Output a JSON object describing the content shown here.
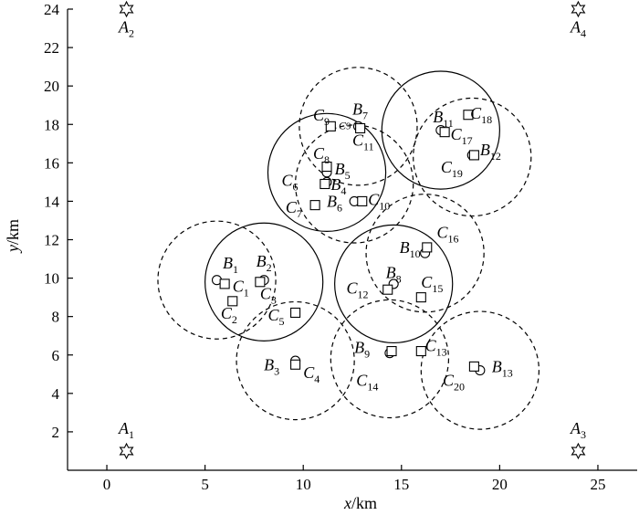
{
  "chart_data": {
    "type": "scatter",
    "title": "",
    "xlabel": {
      "var": "x",
      "unit": "/km"
    },
    "ylabel": {
      "var": "y",
      "unit": "/km"
    },
    "xlim": [
      -2,
      27
    ],
    "ylim": [
      0,
      24
    ],
    "xticks": [
      0,
      5,
      10,
      15,
      20,
      25
    ],
    "yticks": [
      2,
      4,
      6,
      8,
      10,
      12,
      14,
      16,
      18,
      20,
      22,
      24
    ],
    "grid": false,
    "legend": "none",
    "anchors": [
      {
        "label": "A",
        "sub": "1",
        "x": 1,
        "y": 1
      },
      {
        "label": "A",
        "sub": "2",
        "x": 1,
        "y": 24
      },
      {
        "label": "A",
        "sub": "3",
        "x": 24,
        "y": 1
      },
      {
        "label": "A",
        "sub": "4",
        "x": 24,
        "y": 24
      }
    ],
    "base_stations": [
      {
        "label": "B",
        "sub": "1",
        "x": 5.6,
        "y": 9.9
      },
      {
        "label": "B",
        "sub": "2",
        "x": 8.0,
        "y": 9.9
      },
      {
        "label": "B",
        "sub": "3",
        "x": 9.6,
        "y": 5.7
      },
      {
        "label": "B",
        "sub": "4",
        "x": 11.2,
        "y": 15.0
      },
      {
        "label": "B",
        "sub": "5",
        "x": 11.2,
        "y": 15.5
      },
      {
        "label": "B",
        "sub": "6",
        "x": 12.6,
        "y": 14.0
      },
      {
        "label": "B",
        "sub": "7",
        "x": 12.8,
        "y": 17.9
      },
      {
        "label": "B",
        "sub": "8",
        "x": 14.6,
        "y": 9.7
      },
      {
        "label": "B",
        "sub": "9",
        "x": 14.4,
        "y": 6.1
      },
      {
        "label": "B",
        "sub": "10",
        "x": 16.2,
        "y": 11.3
      },
      {
        "label": "B",
        "sub": "11",
        "x": 17.0,
        "y": 17.7
      },
      {
        "label": "B",
        "sub": "12",
        "x": 18.6,
        "y": 16.4
      },
      {
        "label": "B",
        "sub": "13",
        "x": 19.0,
        "y": 5.2
      }
    ],
    "clients": [
      {
        "label": "C",
        "sub": "1",
        "x": 6.0,
        "y": 9.7
      },
      {
        "label": "C",
        "sub": "2",
        "x": 6.4,
        "y": 8.8
      },
      {
        "label": "C",
        "sub": "3",
        "x": 7.8,
        "y": 9.8
      },
      {
        "label": "C",
        "sub": "4",
        "x": 9.6,
        "y": 5.5
      },
      {
        "label": "C",
        "sub": "5",
        "x": 9.6,
        "y": 8.2
      },
      {
        "label": "C",
        "sub": "6",
        "x": 11.1,
        "y": 14.9
      },
      {
        "label": "C",
        "sub": "7",
        "x": 10.6,
        "y": 13.8
      },
      {
        "label": "C",
        "sub": "8",
        "x": 11.2,
        "y": 15.8
      },
      {
        "label": "C",
        "sub": "9",
        "x": 11.4,
        "y": 17.9
      },
      {
        "label": "C",
        "sub": "10",
        "x": 13.0,
        "y": 14.0
      },
      {
        "label": "C",
        "sub": "11",
        "x": 12.9,
        "y": 17.8
      },
      {
        "label": "C",
        "sub": "12",
        "x": 14.3,
        "y": 9.4
      },
      {
        "label": "C",
        "sub": "13",
        "x": 16.0,
        "y": 6.2
      },
      {
        "label": "C",
        "sub": "14",
        "x": 14.5,
        "y": 6.2
      },
      {
        "label": "C",
        "sub": "15",
        "x": 16.0,
        "y": 9.0
      },
      {
        "label": "C",
        "sub": "16",
        "x": 16.3,
        "y": 11.6
      },
      {
        "label": "C",
        "sub": "17",
        "x": 17.2,
        "y": 17.6
      },
      {
        "label": "C",
        "sub": "18",
        "x": 18.4,
        "y": 18.5
      },
      {
        "label": "C",
        "sub": "19",
        "x": 18.7,
        "y": 16.4
      },
      {
        "label": "C",
        "sub": "20",
        "x": 18.7,
        "y": 5.4
      }
    ],
    "coverage_circles": [
      {
        "style": "solid",
        "cx": 8.0,
        "cy": 9.8,
        "r": 3.0
      },
      {
        "style": "solid",
        "cx": 11.2,
        "cy": 15.5,
        "r": 3.0
      },
      {
        "style": "solid",
        "cx": 14.6,
        "cy": 9.7,
        "r": 3.0
      },
      {
        "style": "solid",
        "cx": 17.0,
        "cy": 17.7,
        "r": 3.0
      },
      {
        "style": "dashed",
        "cx": 5.6,
        "cy": 9.9,
        "r": 3.0
      },
      {
        "style": "dashed",
        "cx": 9.6,
        "cy": 5.7,
        "r": 3.0
      },
      {
        "style": "dashed",
        "cx": 12.6,
        "cy": 14.9,
        "r": 3.0
      },
      {
        "style": "dashed",
        "cx": 12.8,
        "cy": 17.9,
        "r": 3.0
      },
      {
        "style": "dashed",
        "cx": 14.4,
        "cy": 5.8,
        "r": 3.0
      },
      {
        "style": "dashed",
        "cx": 16.2,
        "cy": 11.3,
        "r": 3.0
      },
      {
        "style": "dashed",
        "cx": 18.6,
        "cy": 16.3,
        "r": 3.0
      },
      {
        "style": "dashed",
        "cx": 19.0,
        "cy": 5.2,
        "r": 3.0
      }
    ]
  },
  "point_labels": [
    {
      "of": "A1",
      "x": 1.0,
      "y": 1.9,
      "anchor": "middle"
    },
    {
      "of": "A2",
      "x": 1.0,
      "y": 22.8,
      "anchor": "middle"
    },
    {
      "of": "A3",
      "x": 24.0,
      "y": 1.9,
      "anchor": "middle"
    },
    {
      "of": "A4",
      "x": 24.0,
      "y": 22.8,
      "anchor": "middle"
    },
    {
      "of": "B1",
      "x": 5.9,
      "y": 10.5,
      "anchor": "start"
    },
    {
      "of": "C1",
      "x": 6.4,
      "y": 9.3,
      "anchor": "start"
    },
    {
      "of": "B2",
      "x": 7.6,
      "y": 10.6,
      "anchor": "start"
    },
    {
      "of": "C3",
      "x": 7.8,
      "y": 8.9,
      "anchor": "start"
    },
    {
      "of": "C2",
      "x": 5.8,
      "y": 7.9,
      "anchor": "start"
    },
    {
      "of": "C5",
      "x": 8.2,
      "y": 7.8,
      "anchor": "start"
    },
    {
      "of": "B3",
      "x": 8.0,
      "y": 5.2,
      "anchor": "start"
    },
    {
      "of": "C4",
      "x": 10.0,
      "y": 4.8,
      "anchor": "start"
    },
    {
      "of": "C6",
      "x": 8.9,
      "y": 14.8,
      "anchor": "start"
    },
    {
      "of": "B4",
      "x": 11.4,
      "y": 14.6,
      "anchor": "start"
    },
    {
      "of": "C8",
      "x": 10.5,
      "y": 16.2,
      "anchor": "start"
    },
    {
      "of": "B5",
      "x": 11.6,
      "y": 15.4,
      "anchor": "start"
    },
    {
      "of": "C7",
      "x": 9.1,
      "y": 13.4,
      "anchor": "start"
    },
    {
      "of": "B6",
      "x": 11.2,
      "y": 13.7,
      "anchor": "start"
    },
    {
      "of": "C10",
      "x": 13.3,
      "y": 13.8,
      "anchor": "start"
    },
    {
      "of": "C9",
      "x": 10.5,
      "y": 18.2,
      "anchor": "start"
    },
    {
      "of": "C9",
      "x": 11.8,
      "y": 17.75,
      "anchor": "start",
      "small": true
    },
    {
      "of": "B7",
      "x": 12.5,
      "y": 18.5,
      "anchor": "start"
    },
    {
      "of": "C11",
      "x": 12.5,
      "y": 16.9,
      "anchor": "start"
    },
    {
      "of": "B11",
      "x": 16.6,
      "y": 18.1,
      "anchor": "start"
    },
    {
      "of": "C18",
      "x": 18.5,
      "y": 18.3,
      "anchor": "start"
    },
    {
      "of": "C17",
      "x": 17.5,
      "y": 17.2,
      "anchor": "start"
    },
    {
      "of": "B12",
      "x": 19.0,
      "y": 16.4,
      "anchor": "start"
    },
    {
      "of": "C19",
      "x": 17.0,
      "y": 15.5,
      "anchor": "start"
    },
    {
      "of": "C16",
      "x": 16.8,
      "y": 12.1,
      "anchor": "start"
    },
    {
      "of": "B10",
      "x": 14.9,
      "y": 11.3,
      "anchor": "start"
    },
    {
      "of": "B8",
      "x": 14.2,
      "y": 10.0,
      "anchor": "start"
    },
    {
      "of": "C12",
      "x": 12.2,
      "y": 9.2,
      "anchor": "start"
    },
    {
      "of": "C15",
      "x": 16.0,
      "y": 9.5,
      "anchor": "start"
    },
    {
      "of": "B9",
      "x": 12.6,
      "y": 6.1,
      "anchor": "start"
    },
    {
      "of": "C13",
      "x": 16.2,
      "y": 6.2,
      "anchor": "start"
    },
    {
      "of": "C14",
      "x": 12.7,
      "y": 4.4,
      "anchor": "start"
    },
    {
      "of": "B13",
      "x": 19.6,
      "y": 5.1,
      "anchor": "start"
    },
    {
      "of": "C20",
      "x": 17.1,
      "y": 4.4,
      "anchor": "start"
    }
  ]
}
